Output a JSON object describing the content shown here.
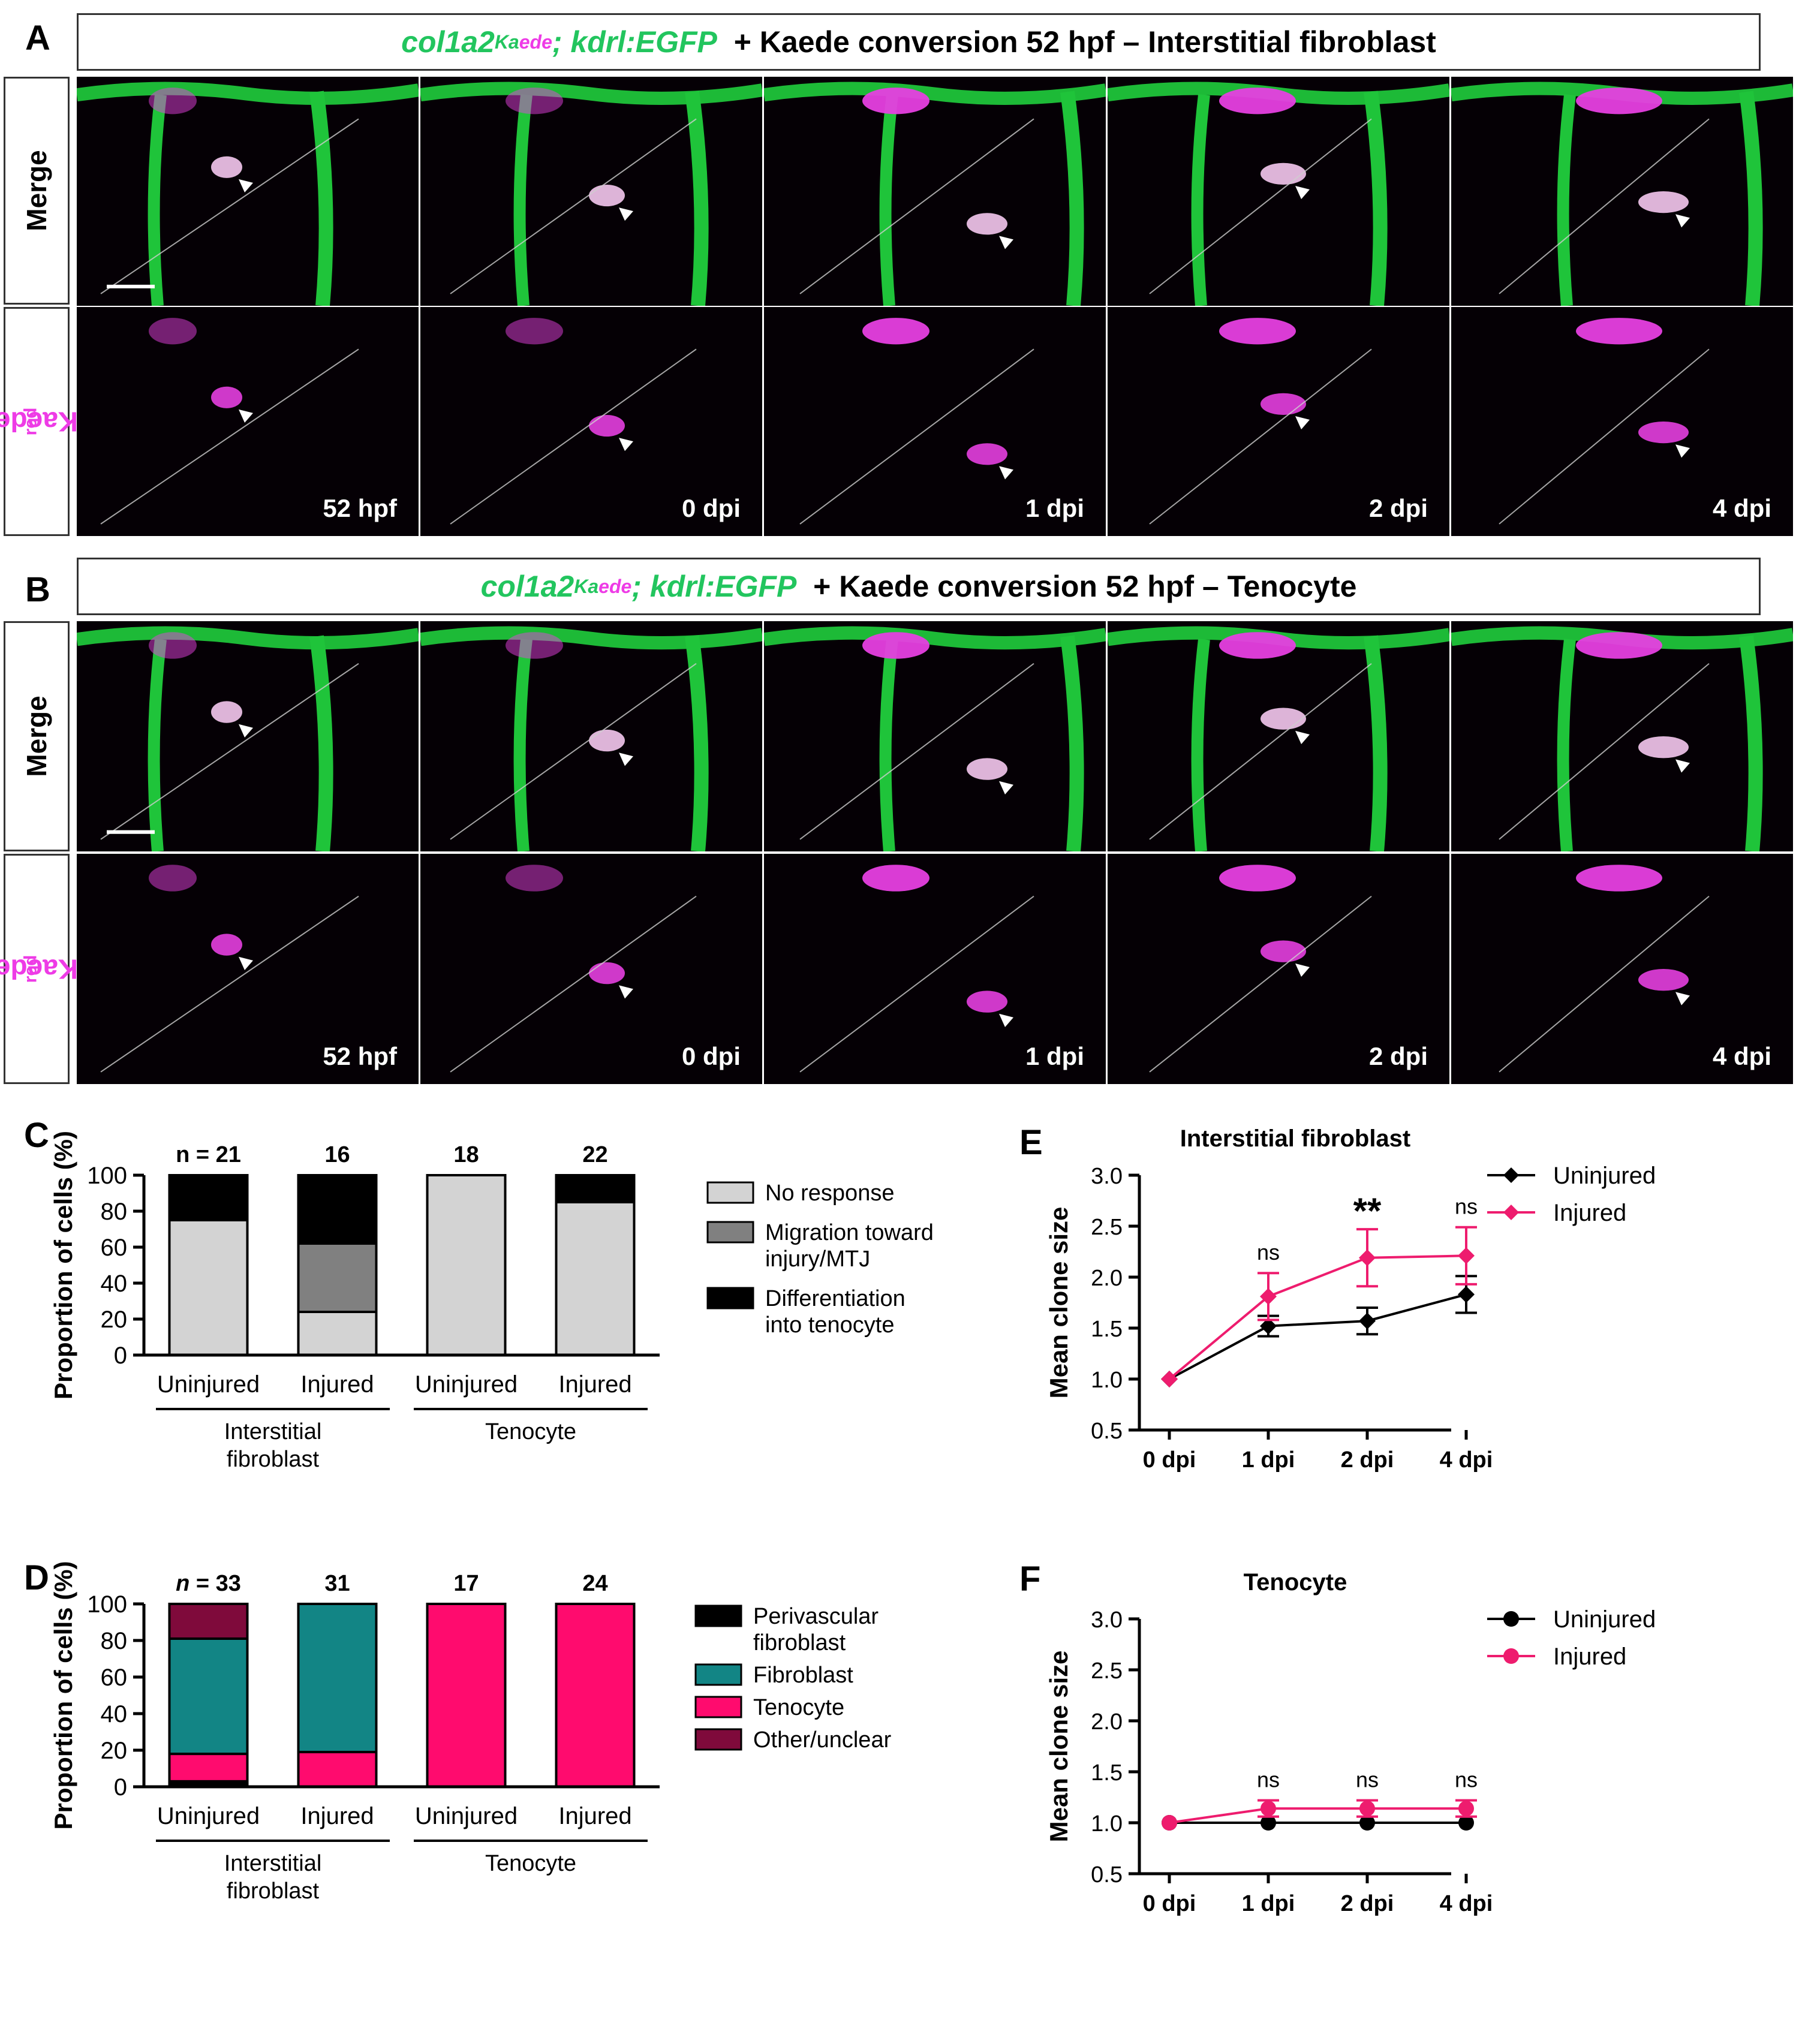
{
  "panels": {
    "A": {
      "letter": "A",
      "title_green": "col1a2",
      "title_sup_a": "Ka",
      "title_sup_b": "ede",
      "title_green2": "; kdrl:EGFP",
      "title_rest": "+ Kaede conversion 52 hpf – Interstitial fibroblast"
    },
    "B": {
      "letter": "B",
      "title_green": "col1a2",
      "title_sup_a": "Ka",
      "title_sup_b": "ede",
      "title_green2": "; kdrl:EGFP",
      "title_rest": "+ Kaede conversion 52 hpf  – Tenocyte"
    },
    "C": {
      "letter": "C"
    },
    "D": {
      "letter": "D"
    },
    "E": {
      "letter": "E"
    },
    "F": {
      "letter": "F"
    }
  },
  "row_labels": {
    "merge": "Merge",
    "kaede": "Kaede",
    "kaede_sup": "red"
  },
  "timepoints": [
    "52 hpf",
    "0 dpi",
    "1 dpi",
    "2 dpi",
    "4 dpi"
  ],
  "colors": {
    "green": "#22c55e",
    "magenta": "#ee3be6",
    "teal": "#128585",
    "pink": "#ff0b6e",
    "maroon": "#7f0a3b",
    "light_gray": "#d3d3d3",
    "mid_gray": "#808080",
    "black": "#000000"
  },
  "chart_data": [
    {
      "id": "C",
      "type": "bar",
      "stacked": true,
      "ylabel": "Proportion of cells (%)",
      "ylim": [
        0,
        100
      ],
      "yticks": [
        0,
        20,
        40,
        60,
        80,
        100
      ],
      "categories": [
        "Uninjured",
        "Injured",
        "Uninjured",
        "Injured"
      ],
      "n_labels": [
        "n = 21",
        "16",
        "18",
        "22"
      ],
      "groups": [
        {
          "label": "Interstitial fibroblast",
          "lines": [
            "Interstitial",
            "fibroblast"
          ]
        },
        {
          "label": "Tenocyte",
          "lines": [
            "Tenocyte"
          ]
        }
      ],
      "series": [
        {
          "name": "No response",
          "color": "#d3d3d3",
          "values": [
            75,
            24,
            100,
            85
          ]
        },
        {
          "name": "Migration toward injury/MTJ",
          "lines": [
            "Migration toward",
            "injury/MTJ"
          ],
          "color": "#808080",
          "values": [
            0,
            38,
            0,
            0
          ]
        },
        {
          "name": "Differentiation into tenocyte",
          "lines": [
            "Differentiation",
            "into tenocyte"
          ],
          "color": "#000000",
          "values": [
            25,
            38,
            0,
            15
          ]
        }
      ]
    },
    {
      "id": "D",
      "type": "bar",
      "stacked": true,
      "ylabel": "Proportion of cells (%)",
      "ylim": [
        0,
        100
      ],
      "yticks": [
        0,
        20,
        40,
        60,
        80,
        100
      ],
      "categories": [
        "Uninjured",
        "Injured",
        "Uninjured",
        "Injured"
      ],
      "n_prefix": "n",
      "n_labels": [
        " = 33",
        "31",
        "17",
        "24"
      ],
      "groups": [
        {
          "label": "Interstitial fibroblast",
          "lines": [
            "Interstitial",
            "fibroblast"
          ]
        },
        {
          "label": "Tenocyte",
          "lines": [
            "Tenocyte"
          ]
        }
      ],
      "series": [
        {
          "name": "Perivascular fibroblast",
          "lines": [
            "Perivascular",
            "fibroblast"
          ],
          "color": "#000000",
          "values": [
            3,
            0,
            0,
            0
          ]
        },
        {
          "name": "Tenocyte",
          "color": "#ff0b6e",
          "values": [
            15,
            19,
            100,
            100
          ]
        },
        {
          "name": "Fibroblast",
          "color": "#128585",
          "values": [
            63,
            81,
            0,
            0
          ]
        },
        {
          "name": "Other/unclear",
          "color": "#7f0a3b",
          "values": [
            19,
            0,
            0,
            0
          ]
        }
      ],
      "legend_order": [
        "Perivascular fibroblast",
        "Fibroblast",
        "Tenocyte",
        "Other/unclear"
      ]
    },
    {
      "id": "E",
      "type": "line",
      "title": "Interstitial fibroblast",
      "ylabel": "Mean clone size",
      "categories": [
        "0 dpi",
        "1 dpi",
        "2 dpi",
        "4 dpi"
      ],
      "ylim": [
        0.5,
        3.0
      ],
      "yticks": [
        0.5,
        1.0,
        1.5,
        2.0,
        2.5,
        3.0
      ],
      "marker": "diamond",
      "series": [
        {
          "name": "Uninjured",
          "color": "#000000",
          "values": [
            1.0,
            1.52,
            1.57,
            1.83
          ],
          "errors": [
            0,
            0.1,
            0.13,
            0.18
          ]
        },
        {
          "name": "Injured",
          "color": "#ee1c6e",
          "values": [
            1.0,
            1.81,
            2.19,
            2.21
          ],
          "errors": [
            0,
            0.23,
            0.28,
            0.28
          ]
        }
      ],
      "annotations": [
        "",
        "ns",
        "**",
        "ns"
      ]
    },
    {
      "id": "F",
      "type": "line",
      "title": "Tenocyte",
      "ylabel": "Mean clone size",
      "categories": [
        "0 dpi",
        "1 dpi",
        "2 dpi",
        "4 dpi"
      ],
      "ylim": [
        0.5,
        3.0
      ],
      "yticks": [
        0.5,
        1.0,
        1.5,
        2.0,
        2.5,
        3.0
      ],
      "marker": "circle",
      "series": [
        {
          "name": "Uninjured",
          "color": "#000000",
          "values": [
            1.0,
            1.0,
            1.0,
            1.0
          ],
          "errors": [
            0,
            0,
            0,
            0
          ]
        },
        {
          "name": "Injured",
          "color": "#ee1c6e",
          "values": [
            1.0,
            1.14,
            1.14,
            1.14
          ],
          "errors": [
            0,
            0.08,
            0.08,
            0.08
          ]
        }
      ],
      "annotations": [
        "",
        "ns",
        "ns",
        "ns"
      ]
    }
  ]
}
